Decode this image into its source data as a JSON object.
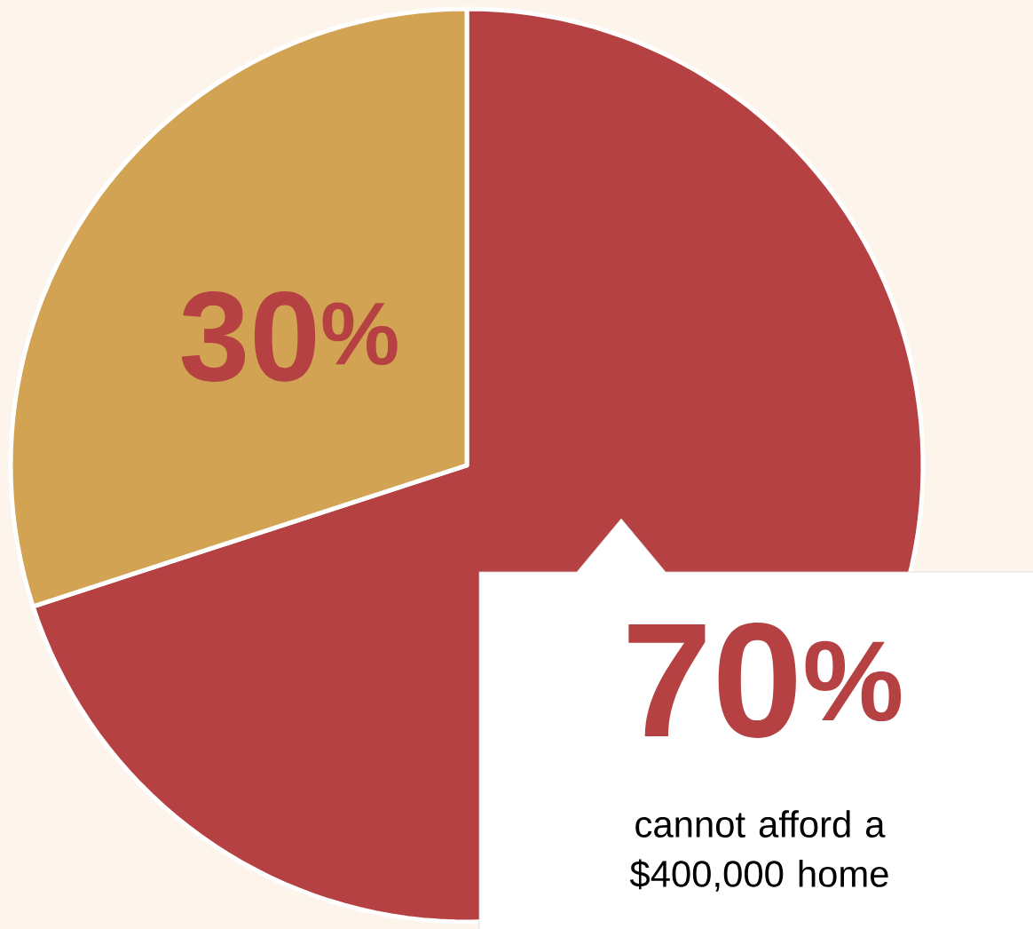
{
  "chart_data": {
    "type": "pie",
    "categories": [
      "cannot afford a $400,000 home",
      null
    ],
    "values": [
      70,
      30
    ],
    "colors": [
      "#b54142",
      "#d3a354"
    ],
    "value_labels": [
      "70$^{%}$",
      "30$^{%}$"
    ]
  }
}
